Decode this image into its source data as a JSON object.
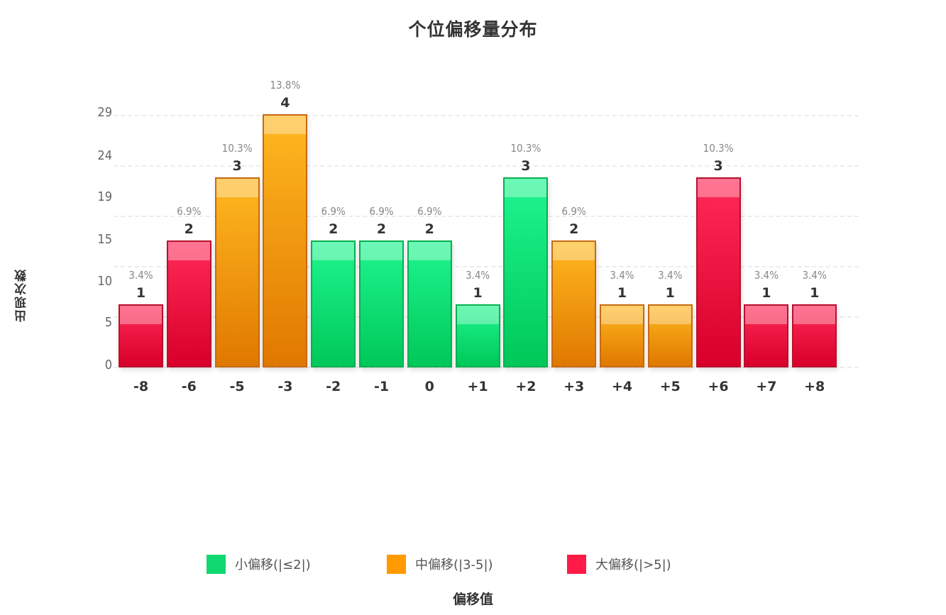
{
  "title": "个位偏移量分布",
  "chart_data": {
    "type": "bar",
    "title": "个位偏移量分布",
    "xlabel": "偏移值",
    "ylabel": "出现次数",
    "categories": [
      "-8",
      "-6",
      "-5",
      "-3",
      "-2",
      "-1",
      "0",
      "+1",
      "+2",
      "+3",
      "+4",
      "+5",
      "+6",
      "+7",
      "+8"
    ],
    "values": [
      1,
      2,
      3,
      4,
      2,
      2,
      2,
      1,
      3,
      2,
      1,
      1,
      3,
      1,
      1
    ],
    "percentages": [
      "3.4%",
      "6.9%",
      "10.3%",
      "13.8%",
      "6.9%",
      "6.9%",
      "6.9%",
      "3.4%",
      "10.3%",
      "6.9%",
      "3.4%",
      "3.4%",
      "10.3%",
      "3.4%",
      "3.4%"
    ],
    "groups": [
      "large",
      "large",
      "medium",
      "medium",
      "small",
      "small",
      "small",
      "small",
      "small",
      "medium",
      "medium",
      "medium",
      "large",
      "large",
      "large"
    ],
    "yticks": [
      "0",
      "5",
      "10",
      "15",
      "19",
      "24",
      "29"
    ],
    "grid": true,
    "legend_position": "bottom",
    "legend": [
      {
        "key": "small",
        "label": "小偏移(|≤2|)",
        "color": "#10d870"
      },
      {
        "key": "medium",
        "label": "中偏移(|3-5|)",
        "color": "#ff9a00"
      },
      {
        "key": "large",
        "label": "大偏移(|>5|)",
        "color": "#ff1a48"
      }
    ]
  },
  "colors": {
    "small": {
      "fill_top": "#1ef590",
      "fill_bottom": "#00c858",
      "border": "#08b050"
    },
    "medium": {
      "fill_top": "#ffb820",
      "fill_bottom": "#e07800",
      "border": "#c86a10"
    },
    "large": {
      "fill_top": "#ff2a58",
      "fill_bottom": "#d8002a",
      "border": "#b8102c"
    }
  }
}
